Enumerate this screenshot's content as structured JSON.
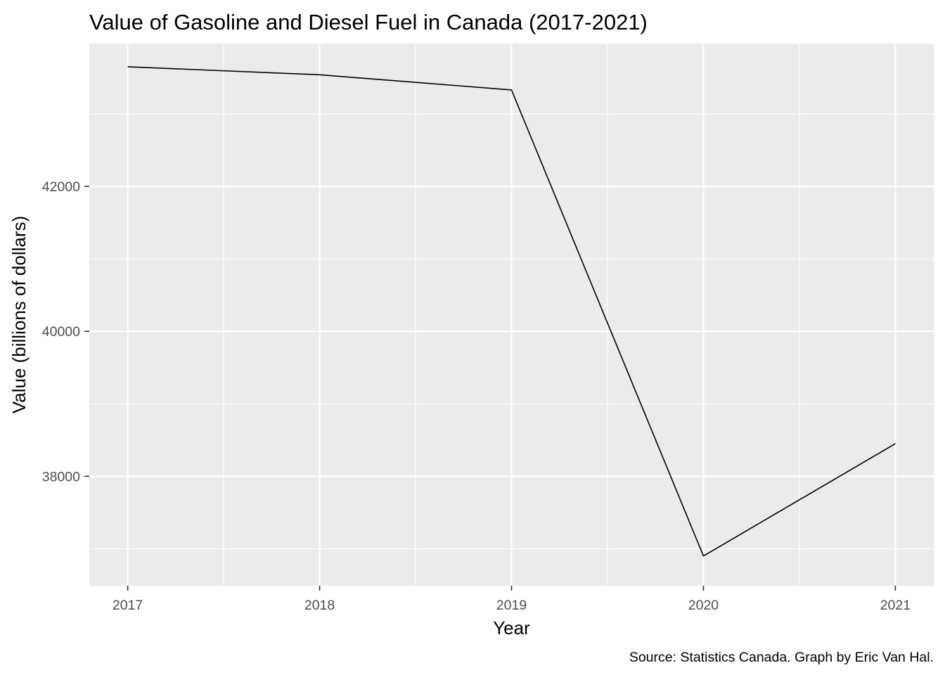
{
  "chart_data": {
    "type": "line",
    "title": "Value of Gasoline and Diesel Fuel in Canada (2017-2021)",
    "xlabel": "Year",
    "ylabel": "Value (billions of dollars)",
    "caption": "Source: Statistics Canada. Graph by Eric Van Hal.",
    "x": [
      2017,
      2018,
      2019,
      2020,
      2021
    ],
    "y": [
      43650,
      43540,
      43330,
      36900,
      38450
    ],
    "x_ticks": [
      2017,
      2018,
      2019,
      2020,
      2021
    ],
    "x_tick_labels": [
      "2017",
      "2018",
      "2019",
      "2020",
      "2021"
    ],
    "y_ticks": [
      38000,
      40000,
      42000
    ],
    "y_tick_labels": [
      "38000",
      "40000",
      "42000"
    ],
    "xlim": [
      2016.8,
      2021.2
    ],
    "ylim": [
      36490,
      43970
    ],
    "grid": true,
    "legend": "none",
    "line_color": "#000000",
    "panel_background": "#ebebeb",
    "gridline_color": "#ffffff"
  }
}
